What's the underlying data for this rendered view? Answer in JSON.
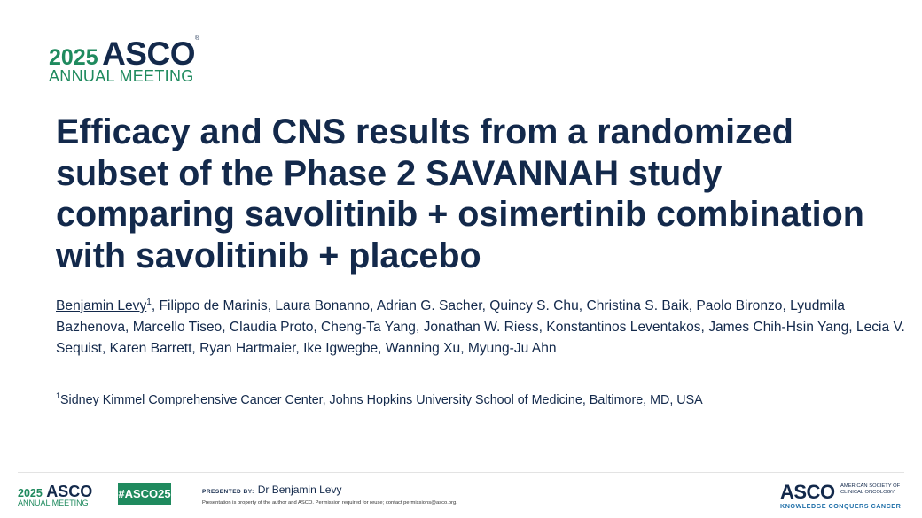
{
  "header_logo": {
    "year": "2025",
    "brand": "ASCO",
    "registered": "®",
    "subtitle": "ANNUAL MEETING"
  },
  "title": "Efficacy and CNS results from a randomized subset of the Phase 2 SAVANNAH study comparing savolitinib + osimertinib combination with savolitinib + placebo",
  "authors": {
    "presenting": "Benjamin Levy",
    "presenting_affil": "1",
    "others": ", Filippo de Marinis, Laura Bonanno, Adrian G. Sacher, Quincy S. Chu, Christina S. Baik, Paolo Bironzo, Lyudmila Bazhenova, Marcello Tiseo, Claudia Proto, Cheng-Ta Yang, Jonathan W. Riess, Konstantinos Leventakos, James Chih-Hsin Yang, Lecia V. Sequist, Karen Barrett, Ryan Hartmaier, Ike Igwegbe, Wanning Xu, Myung-Ju Ahn"
  },
  "affiliation": {
    "number": "1",
    "text": "Sidney Kimmel Comprehensive Cancer Center, Johns Hopkins University School of Medicine, Baltimore, MD, USA"
  },
  "footer": {
    "logo": {
      "year": "2025",
      "brand": "ASCO",
      "subtitle": "ANNUAL MEETING"
    },
    "hashtag": "#ASCO25",
    "presented_label": "PRESENTED BY:",
    "presenter": "Dr Benjamin Levy",
    "notice": "Presentation is property of the author and ASCO. Permission required for reuse; contact permissions@asco.org.",
    "corp_logo": {
      "brand": "ASCO",
      "society": "AMERICAN SOCIETY OF CLINICAL ONCOLOGY",
      "tagline": "KNOWLEDGE CONQUERS CANCER"
    }
  },
  "colors": {
    "navy": "#13294b",
    "green": "#1f8a5e",
    "blue": "#1f6fa8"
  }
}
